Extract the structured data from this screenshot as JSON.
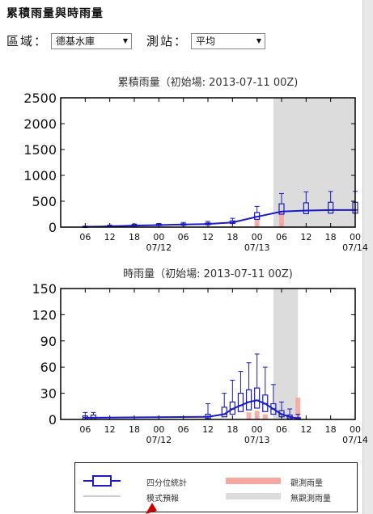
{
  "heading": "累積雨量與時雨量",
  "region": {
    "label": "區域：",
    "value": "德基水庫"
  },
  "station": {
    "label": "測站：",
    "value": "平均"
  },
  "colors": {
    "box": "#1a1ac8",
    "observed": "#f5a7a0",
    "no_obs": "#dcdcdc"
  },
  "chart_data": [
    {
      "type": "box",
      "title": "累積雨量（初始場:  2013-07-11 00Z)",
      "ylim": [
        0,
        2500
      ],
      "yticks": [
        0,
        500,
        1000,
        1500,
        2000,
        2500
      ],
      "xticks": [
        "06",
        "12",
        "18",
        "00",
        "06",
        "12",
        "18",
        "00",
        "06",
        "12",
        "18",
        "00"
      ],
      "date_labels": [
        "07/12",
        "07/13",
        "07/14"
      ],
      "no_obs_hours": [
        52,
        72
      ],
      "hours": [
        6,
        12,
        18,
        24,
        30,
        36,
        42,
        48,
        54,
        60,
        66,
        72
      ],
      "median": [
        5,
        15,
        30,
        40,
        50,
        60,
        90,
        200,
        300,
        320,
        330,
        330
      ],
      "q1": [
        2,
        8,
        20,
        30,
        35,
        45,
        70,
        150,
        250,
        260,
        270,
        270
      ],
      "q3": [
        10,
        25,
        45,
        55,
        65,
        80,
        120,
        280,
        450,
        470,
        480,
        480
      ],
      "whisker_high": [
        20,
        40,
        60,
        70,
        90,
        110,
        170,
        400,
        650,
        680,
        690,
        690
      ],
      "observed": [
        0,
        0,
        0,
        0,
        0,
        0,
        20,
        150,
        280,
        0,
        0,
        0
      ]
    },
    {
      "type": "box",
      "title": "時雨量（初始場:  2013-07-11 00Z)",
      "ylim": [
        0,
        150
      ],
      "yticks": [
        0,
        30,
        60,
        90,
        120,
        150
      ],
      "xticks": [
        "06",
        "12",
        "18",
        "00",
        "06",
        "12",
        "18",
        "00",
        "06",
        "12",
        "18",
        "00"
      ],
      "date_labels": [
        "07/12",
        "07/13",
        "07/14"
      ],
      "no_obs_hours": [
        52,
        58
      ],
      "hours": [
        6,
        8,
        36,
        40,
        42,
        44,
        46,
        48,
        50,
        52,
        54,
        56,
        58
      ],
      "median": [
        2,
        2,
        3,
        6,
        12,
        16,
        20,
        22,
        18,
        12,
        6,
        3,
        1
      ],
      "q1": [
        0,
        0,
        1,
        3,
        6,
        9,
        11,
        13,
        9,
        6,
        3,
        1,
        0
      ],
      "q3": [
        4,
        5,
        6,
        14,
        20,
        30,
        34,
        36,
        28,
        18,
        10,
        5,
        2
      ],
      "whisker_high": [
        8,
        8,
        18,
        30,
        45,
        55,
        65,
        75,
        60,
        40,
        20,
        12,
        6
      ],
      "observed": [
        0,
        0,
        0,
        0,
        0,
        0,
        8,
        10,
        6,
        0,
        0,
        0,
        25
      ]
    }
  ],
  "legend": {
    "quartile_stats": "四分位統計",
    "model_forecast": "模式預報",
    "observed_rain": "觀測雨量",
    "no_observed_rain": "無觀測雨量"
  }
}
